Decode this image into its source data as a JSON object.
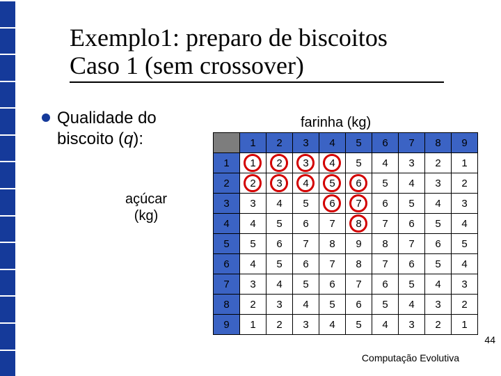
{
  "title_line1": "Exemplo1: preparo de biscoitos",
  "title_line2": "Caso 1 (sem crossover)",
  "bullet_prefix": "Qualidade do biscoito (",
  "bullet_var": "q",
  "bullet_suffix": "):",
  "col_label": "farinha (kg)",
  "row_label_line1": "açúcar",
  "row_label_line2": "(kg)",
  "footer": "Computação Evolutiva",
  "page": "44",
  "table": {
    "col_headers": [
      "1",
      "2",
      "3",
      "4",
      "5",
      "6",
      "7",
      "8",
      "9"
    ],
    "row_headers": [
      "1",
      "2",
      "3",
      "4",
      "5",
      "6",
      "7",
      "8",
      "9"
    ],
    "rows": [
      [
        "1",
        "2",
        "3",
        "4",
        "5",
        "4",
        "3",
        "2",
        "1"
      ],
      [
        "2",
        "3",
        "4",
        "5",
        "6",
        "5",
        "4",
        "3",
        "2"
      ],
      [
        "3",
        "4",
        "5",
        "6",
        "7",
        "6",
        "5",
        "4",
        "3"
      ],
      [
        "4",
        "5",
        "6",
        "7",
        "8",
        "7",
        "6",
        "5",
        "4"
      ],
      [
        "5",
        "6",
        "7",
        "8",
        "9",
        "8",
        "7",
        "6",
        "5"
      ],
      [
        "4",
        "5",
        "6",
        "7",
        "8",
        "7",
        "6",
        "5",
        "4"
      ],
      [
        "3",
        "4",
        "5",
        "6",
        "7",
        "6",
        "5",
        "4",
        "3"
      ],
      [
        "2",
        "3",
        "4",
        "5",
        "6",
        "5",
        "4",
        "3",
        "2"
      ],
      [
        "1",
        "2",
        "3",
        "4",
        "5",
        "4",
        "3",
        "2",
        "1"
      ]
    ]
  },
  "circles": [
    {
      "row": 1,
      "col": 1
    },
    {
      "row": 1,
      "col": 2
    },
    {
      "row": 1,
      "col": 3
    },
    {
      "row": 1,
      "col": 4
    },
    {
      "row": 2,
      "col": 1
    },
    {
      "row": 2,
      "col": 2
    },
    {
      "row": 2,
      "col": 3
    },
    {
      "row": 2,
      "col": 4
    },
    {
      "row": 2,
      "col": 5
    },
    {
      "row": 3,
      "col": 4
    },
    {
      "row": 3,
      "col": 5
    },
    {
      "row": 4,
      "col": 5
    }
  ],
  "circle_style": {
    "stroke": "#d30000",
    "stroke_width": 3,
    "diameter": 26
  },
  "colors": {
    "stripe": "#153a9a",
    "header_bg": "#3b63c4",
    "corner_bg": "#7d7d7d",
    "text": "#000000",
    "background": "#ffffff"
  },
  "cell": {
    "width": 38,
    "height": 29
  }
}
